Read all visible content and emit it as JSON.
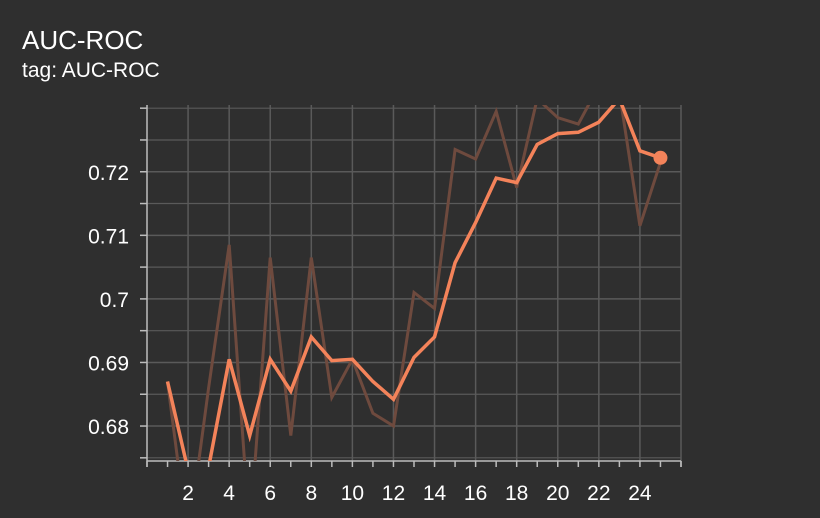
{
  "header": {
    "title": "AUC-ROC",
    "subtitle": "tag: AUC-ROC"
  },
  "colors": {
    "background": "#2f2f2f",
    "grid": "#5a5a5a",
    "axis": "#bdbdbd",
    "smoothed": "#f4835a",
    "raw": "#6e4a3e"
  },
  "chart_data": {
    "type": "line",
    "title": "AUC-ROC",
    "subtitle": "tag: AUC-ROC",
    "xlabel": "",
    "ylabel": "",
    "xlim": [
      0,
      26
    ],
    "ylim": [
      0.6745,
      0.7305
    ],
    "x_ticks": [
      2,
      4,
      6,
      8,
      10,
      12,
      14,
      16,
      18,
      20,
      22,
      24
    ],
    "y_ticks": [
      0.68,
      0.69,
      0.7,
      0.71,
      0.72
    ],
    "y_tick_labels": [
      "0.68",
      "0.69",
      "0.7",
      "0.71",
      "0.72"
    ],
    "grid": true,
    "legend": "none",
    "series": [
      {
        "role": "raw",
        "x": [
          1,
          2,
          3,
          4,
          5,
          6,
          7,
          8,
          9,
          10,
          11,
          12,
          13,
          14,
          15,
          16,
          17,
          18,
          19,
          20,
          21,
          22,
          23,
          24,
          25
        ],
        "values": [
          0.687,
          0.662,
          0.686,
          0.7085,
          0.663,
          0.7065,
          0.6785,
          0.7065,
          0.6845,
          0.6905,
          0.682,
          0.68,
          0.701,
          0.6985,
          0.7235,
          0.722,
          0.7295,
          0.7175,
          0.7315,
          0.7285,
          0.7275,
          0.7335,
          0.7325,
          0.7115,
          0.7215
        ]
      },
      {
        "role": "smoothed",
        "x": [
          1,
          2,
          3,
          4,
          5,
          6,
          7,
          8,
          9,
          10,
          11,
          12,
          13,
          14,
          15,
          16,
          17,
          18,
          19,
          20,
          21,
          22,
          23,
          24,
          25
        ],
        "values": [
          0.687,
          0.673,
          0.6735,
          0.6905,
          0.6785,
          0.6905,
          0.6855,
          0.694,
          0.6903,
          0.6905,
          0.687,
          0.6842,
          0.6908,
          0.694,
          0.7057,
          0.712,
          0.719,
          0.7183,
          0.7243,
          0.726,
          0.7262,
          0.7278,
          0.7315,
          0.7233,
          0.7222
        ]
      }
    ],
    "last_point_marker": {
      "x": 25,
      "y": 0.7222
    }
  }
}
